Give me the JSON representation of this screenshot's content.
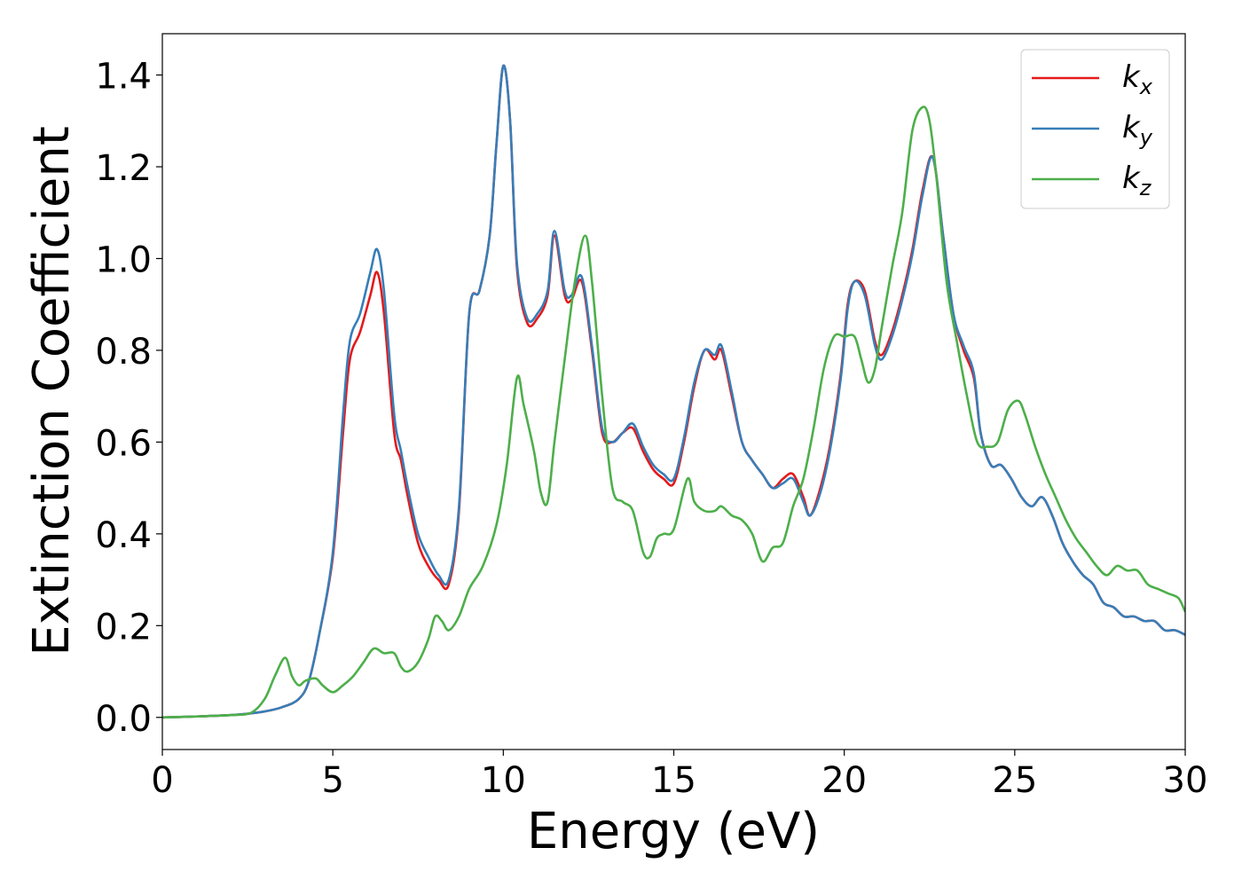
{
  "chart_data": {
    "type": "line",
    "xlabel": "Energy (eV)",
    "ylabel": "Extinction Coefficient",
    "xlim": [
      0,
      30
    ],
    "ylim": [
      -0.07,
      1.49
    ],
    "xticks": [
      0,
      5,
      10,
      15,
      20,
      25,
      30
    ],
    "xtick_labels": [
      "0",
      "5",
      "10",
      "15",
      "20",
      "25",
      "30"
    ],
    "yticks": [
      0.0,
      0.2,
      0.4,
      0.6,
      0.8,
      1.0,
      1.2,
      1.4
    ],
    "ytick_labels": [
      "0.0",
      "0.2",
      "0.4",
      "0.6",
      "0.8",
      "1.0",
      "1.2",
      "1.4"
    ],
    "grid": false,
    "legend_position": "top-right",
    "series": [
      {
        "name": "k_x",
        "label_main": "k",
        "label_sub": "x",
        "color": "#e41a1c",
        "x": [
          0,
          1,
          2,
          2.5,
          3,
          3.5,
          4,
          4.3,
          4.6,
          5,
          5.3,
          5.5,
          5.8,
          6.1,
          6.3,
          6.5,
          6.8,
          7.0,
          7.2,
          7.5,
          7.8,
          8.1,
          8.4,
          8.7,
          9.0,
          9.3,
          9.6,
          9.8,
          10.0,
          10.2,
          10.4,
          10.7,
          11.0,
          11.3,
          11.5,
          11.8,
          12.0,
          12.3,
          12.6,
          12.9,
          13.2,
          13.5,
          13.8,
          14.1,
          14.4,
          14.7,
          15.0,
          15.3,
          15.6,
          15.9,
          16.2,
          16.4,
          16.7,
          17.0,
          17.3,
          17.6,
          17.9,
          18.2,
          18.5,
          18.8,
          19.0,
          19.3,
          19.6,
          19.9,
          20.1,
          20.3,
          20.6,
          20.9,
          21.1,
          21.4,
          21.7,
          22.0,
          22.3,
          22.6,
          22.9,
          23.2,
          23.5,
          23.8,
          24.0,
          24.3,
          24.6,
          24.9,
          25.2,
          25.5,
          25.8,
          26.1,
          26.4,
          26.7,
          27.0,
          27.3,
          27.6,
          27.9,
          28.2,
          28.5,
          28.8,
          29.1,
          29.4,
          29.7,
          30.0
        ],
        "y": [
          0.0,
          0.002,
          0.005,
          0.008,
          0.013,
          0.022,
          0.04,
          0.08,
          0.18,
          0.35,
          0.62,
          0.78,
          0.84,
          0.92,
          0.97,
          0.88,
          0.62,
          0.56,
          0.48,
          0.38,
          0.33,
          0.3,
          0.29,
          0.45,
          0.88,
          0.93,
          1.05,
          1.25,
          1.42,
          1.3,
          0.98,
          0.86,
          0.87,
          0.92,
          1.05,
          0.92,
          0.91,
          0.95,
          0.8,
          0.62,
          0.6,
          0.62,
          0.63,
          0.58,
          0.54,
          0.52,
          0.51,
          0.6,
          0.72,
          0.8,
          0.78,
          0.8,
          0.7,
          0.6,
          0.56,
          0.53,
          0.5,
          0.52,
          0.53,
          0.48,
          0.44,
          0.5,
          0.6,
          0.75,
          0.9,
          0.95,
          0.93,
          0.82,
          0.79,
          0.84,
          0.92,
          1.02,
          1.15,
          1.22,
          1.05,
          0.88,
          0.8,
          0.74,
          0.62,
          0.55,
          0.55,
          0.52,
          0.48,
          0.46,
          0.48,
          0.44,
          0.38,
          0.34,
          0.31,
          0.29,
          0.25,
          0.24,
          0.22,
          0.22,
          0.21,
          0.21,
          0.19,
          0.19,
          0.18
        ]
      },
      {
        "name": "k_y",
        "label_main": "k",
        "label_sub": "y",
        "color": "#377eb8",
        "x": [
          0,
          1,
          2,
          2.5,
          3,
          3.5,
          4,
          4.3,
          4.6,
          5,
          5.3,
          5.5,
          5.8,
          6.1,
          6.3,
          6.5,
          6.8,
          7.0,
          7.2,
          7.5,
          7.8,
          8.1,
          8.4,
          8.7,
          9.0,
          9.3,
          9.6,
          9.8,
          10.0,
          10.2,
          10.4,
          10.7,
          11.0,
          11.3,
          11.5,
          11.8,
          12.0,
          12.3,
          12.6,
          12.9,
          13.2,
          13.5,
          13.8,
          14.1,
          14.4,
          14.7,
          15.0,
          15.3,
          15.6,
          15.9,
          16.2,
          16.4,
          16.7,
          17.0,
          17.3,
          17.6,
          17.9,
          18.2,
          18.5,
          18.8,
          19.0,
          19.3,
          19.6,
          19.9,
          20.1,
          20.3,
          20.6,
          20.9,
          21.1,
          21.4,
          21.7,
          22.0,
          22.3,
          22.6,
          22.9,
          23.2,
          23.5,
          23.8,
          24.0,
          24.3,
          24.6,
          24.9,
          25.2,
          25.5,
          25.8,
          26.1,
          26.4,
          26.7,
          27.0,
          27.3,
          27.6,
          27.9,
          28.2,
          28.5,
          28.8,
          29.1,
          29.4,
          29.7,
          30.0
        ],
        "y": [
          0.0,
          0.002,
          0.005,
          0.008,
          0.013,
          0.022,
          0.04,
          0.08,
          0.18,
          0.36,
          0.66,
          0.82,
          0.88,
          0.97,
          1.02,
          0.93,
          0.66,
          0.58,
          0.5,
          0.4,
          0.35,
          0.31,
          0.3,
          0.46,
          0.88,
          0.93,
          1.05,
          1.25,
          1.42,
          1.3,
          0.99,
          0.87,
          0.88,
          0.93,
          1.06,
          0.93,
          0.92,
          0.96,
          0.81,
          0.63,
          0.6,
          0.62,
          0.64,
          0.59,
          0.55,
          0.53,
          0.52,
          0.61,
          0.73,
          0.8,
          0.79,
          0.81,
          0.71,
          0.6,
          0.56,
          0.53,
          0.5,
          0.51,
          0.52,
          0.47,
          0.44,
          0.49,
          0.59,
          0.74,
          0.89,
          0.95,
          0.92,
          0.81,
          0.78,
          0.83,
          0.91,
          1.01,
          1.14,
          1.22,
          1.05,
          0.88,
          0.81,
          0.75,
          0.62,
          0.55,
          0.55,
          0.52,
          0.48,
          0.46,
          0.48,
          0.44,
          0.38,
          0.34,
          0.31,
          0.29,
          0.25,
          0.24,
          0.22,
          0.22,
          0.21,
          0.21,
          0.19,
          0.19,
          0.18
        ]
      },
      {
        "name": "k_z",
        "label_main": "k",
        "label_sub": "z",
        "color": "#4daf4a",
        "x": [
          0,
          1,
          2,
          2.6,
          3.0,
          3.3,
          3.6,
          3.8,
          4.0,
          4.2,
          4.5,
          4.7,
          5.0,
          5.3,
          5.6,
          5.9,
          6.2,
          6.5,
          6.8,
          7.0,
          7.2,
          7.5,
          7.8,
          8.0,
          8.2,
          8.4,
          8.7,
          9.0,
          9.4,
          9.8,
          10.1,
          10.4,
          10.6,
          10.9,
          11.1,
          11.3,
          11.5,
          11.8,
          12.1,
          12.4,
          12.6,
          12.9,
          13.2,
          13.5,
          13.8,
          14.1,
          14.3,
          14.5,
          14.7,
          15.0,
          15.4,
          15.6,
          15.9,
          16.2,
          16.4,
          16.7,
          17.0,
          17.3,
          17.6,
          17.9,
          18.2,
          18.5,
          18.8,
          19.1,
          19.4,
          19.7,
          20.0,
          20.3,
          20.5,
          20.7,
          20.9,
          21.1,
          21.4,
          21.7,
          22.0,
          22.3,
          22.5,
          22.7,
          23.0,
          23.3,
          23.6,
          23.9,
          24.2,
          24.5,
          24.8,
          25.1,
          25.3,
          25.6,
          25.9,
          26.2,
          26.5,
          26.8,
          27.1,
          27.4,
          27.7,
          28.0,
          28.3,
          28.6,
          28.9,
          29.2,
          29.5,
          29.8,
          30.0
        ],
        "y": [
          0.0,
          0.002,
          0.005,
          0.01,
          0.04,
          0.09,
          0.13,
          0.09,
          0.07,
          0.08,
          0.085,
          0.07,
          0.055,
          0.07,
          0.09,
          0.12,
          0.15,
          0.14,
          0.14,
          0.11,
          0.1,
          0.12,
          0.17,
          0.22,
          0.21,
          0.19,
          0.22,
          0.28,
          0.33,
          0.42,
          0.55,
          0.74,
          0.68,
          0.58,
          0.49,
          0.47,
          0.6,
          0.78,
          0.95,
          1.05,
          0.95,
          0.7,
          0.5,
          0.47,
          0.45,
          0.36,
          0.35,
          0.39,
          0.4,
          0.41,
          0.52,
          0.47,
          0.45,
          0.45,
          0.46,
          0.44,
          0.43,
          0.4,
          0.34,
          0.37,
          0.38,
          0.46,
          0.52,
          0.63,
          0.76,
          0.83,
          0.83,
          0.83,
          0.78,
          0.73,
          0.76,
          0.85,
          0.98,
          1.1,
          1.28,
          1.33,
          1.3,
          1.18,
          0.95,
          0.82,
          0.7,
          0.6,
          0.59,
          0.6,
          0.67,
          0.69,
          0.66,
          0.59,
          0.53,
          0.48,
          0.43,
          0.39,
          0.36,
          0.33,
          0.31,
          0.33,
          0.32,
          0.32,
          0.29,
          0.28,
          0.27,
          0.26,
          0.23
        ]
      }
    ]
  }
}
